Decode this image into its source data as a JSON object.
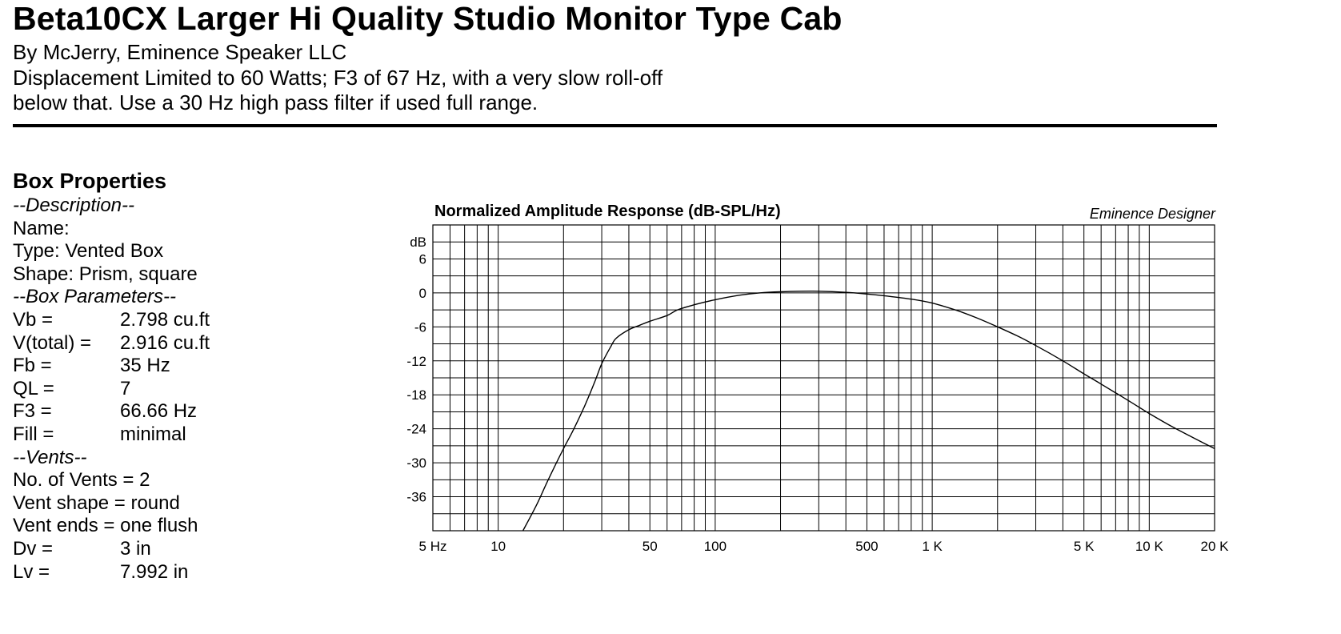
{
  "header": {
    "title": "Beta10CX Larger Hi Quality Studio Monitor Type Cab",
    "byline": "By McJerry, Eminence Speaker LLC",
    "note_line1": "Displacement Limited to 60 Watts; F3 of 67 Hz, with a very slow roll-off",
    "note_line2": "below that.   Use a 30 Hz high pass filter if used full range."
  },
  "box": {
    "heading": "Box Properties",
    "description_head": "--Description--",
    "name": "Name:",
    "type": "Type: Vented Box",
    "shape": "Shape: Prism, square",
    "params_head": "--Box Parameters--",
    "params": [
      {
        "k": "Vb =",
        "v": "2.798 cu.ft"
      },
      {
        "k": "V(total) =",
        "v": "2.916 cu.ft"
      },
      {
        "k": "Fb =",
        "v": "35 Hz"
      },
      {
        "k": "QL =",
        "v": "7"
      },
      {
        "k": "F3 =",
        "v": "66.66 Hz"
      },
      {
        "k": "Fill =",
        "v": "minimal"
      }
    ],
    "vents_head": "--Vents--",
    "vents_count": "No. of Vents = 2",
    "vent_shape": "Vent shape = round",
    "vent_ends": "Vent ends = one flush",
    "vent_params": [
      {
        "k": "Dv =",
        "v": "3 in"
      },
      {
        "k": "Lv =",
        "v": "7.992 in"
      }
    ]
  },
  "chart_data": {
    "type": "line",
    "title": "Normalized Amplitude Response (dB-SPL/Hz)",
    "credit": "Eminence Designer",
    "x_scale": "log",
    "xlim": [
      5,
      20000
    ],
    "ylim": [
      -42,
      12
    ],
    "ylabel": "dB",
    "y_ticks": [
      6,
      0,
      -6,
      -12,
      -18,
      -24,
      -30,
      -36
    ],
    "x_tick_labels": [
      {
        "f": 5,
        "label": "5 Hz"
      },
      {
        "f": 10,
        "label": "10"
      },
      {
        "f": 50,
        "label": "50"
      },
      {
        "f": 100,
        "label": "100"
      },
      {
        "f": 500,
        "label": "500"
      },
      {
        "f": 1000,
        "label": "1 K"
      },
      {
        "f": 5000,
        "label": "5 K"
      },
      {
        "f": 10000,
        "label": "10 K"
      },
      {
        "f": 20000,
        "label": "20 K"
      }
    ],
    "grid": true,
    "series": [
      {
        "x": [
          13,
          15,
          17,
          20,
          22,
          25,
          28,
          30,
          33,
          35,
          40,
          45,
          50,
          60,
          67,
          80,
          100,
          130,
          160,
          200,
          250,
          300,
          400,
          500,
          600,
          800,
          1000,
          1300,
          1600,
          2000,
          2500,
          3000,
          4000,
          5000,
          6000,
          8000,
          10000,
          13000,
          16000,
          20000
        ],
        "y": [
          -42,
          -37.5,
          -33,
          -27.5,
          -24.5,
          -20,
          -15.5,
          -12.5,
          -9.5,
          -8,
          -6.5,
          -5.7,
          -5,
          -4,
          -3,
          -2.1,
          -1.2,
          -0.4,
          0,
          0.2,
          0.3,
          0.3,
          0.1,
          -0.2,
          -0.5,
          -1.1,
          -1.8,
          -3.1,
          -4.4,
          -6,
          -7.7,
          -9.3,
          -12,
          -14.3,
          -16.1,
          -19,
          -21.3,
          -23.8,
          -25.6,
          -27.5
        ]
      }
    ]
  }
}
